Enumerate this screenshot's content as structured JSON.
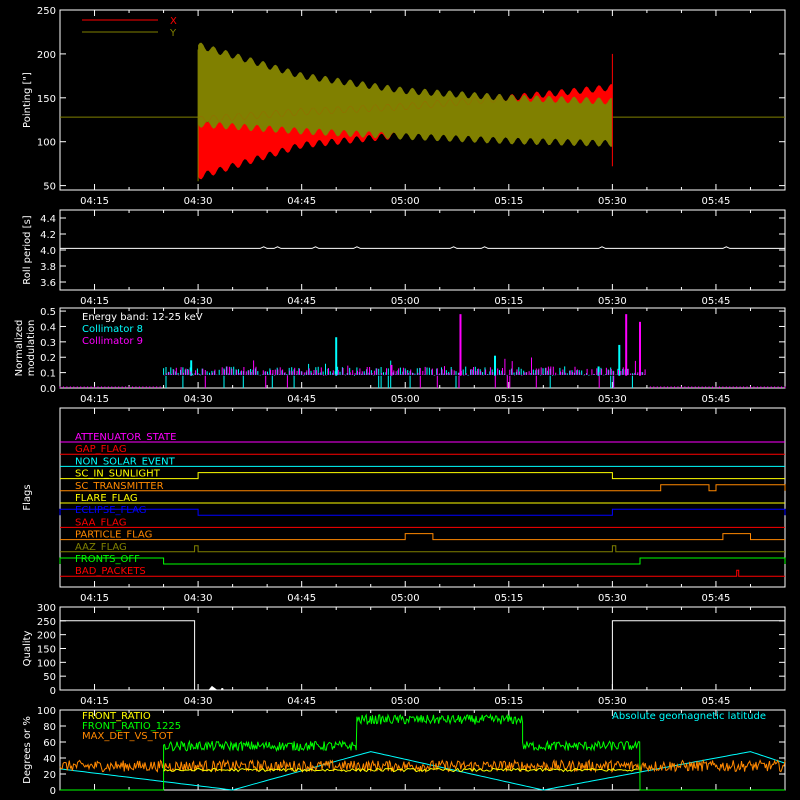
{
  "chart_data": [
    {
      "type": "line",
      "ylabel": "Pointing [\"]",
      "ylim": [
        45,
        250
      ],
      "yticks": [
        50,
        100,
        150,
        200,
        250
      ],
      "xlim": [
        "04:10",
        "05:55"
      ],
      "xticks": [
        "04:15",
        "04:30",
        "04:45",
        "05:00",
        "05:15",
        "05:30",
        "05:45"
      ],
      "legend_position": "top-left",
      "series": [
        {
          "name": "X",
          "color": "#ff0000",
          "baseline": 128,
          "active_range": [
            "04:30",
            "05:30"
          ],
          "envelope": {
            "time": [
              "04:30",
              "04:45",
              "05:00",
              "05:15",
              "05:30"
            ],
            "low": [
              60,
              96,
              108,
              115,
              120
            ],
            "high": [
              125,
              134,
              140,
              150,
              162
            ]
          }
        },
        {
          "name": "Y",
          "color": "#808000",
          "baseline": 128,
          "active_range": [
            "04:30",
            "05:30"
          ],
          "envelope": {
            "time": [
              "04:30",
              "04:45",
              "05:00",
              "05:15",
              "05:30"
            ],
            "low": [
              120,
              112,
              106,
              101,
              98
            ],
            "high": [
              210,
              175,
              158,
              150,
              146
            ]
          }
        }
      ]
    },
    {
      "type": "line",
      "ylabel": "Roll period [s]",
      "ylim": [
        3.5,
        4.5
      ],
      "yticks": [
        3.6,
        3.8,
        4.0,
        4.2,
        4.4
      ],
      "xticks": [
        "04:15",
        "04:30",
        "04:45",
        "05:00",
        "05:15",
        "05:30",
        "05:45"
      ],
      "series": [
        {
          "color": "#ffffff",
          "value": 4.02
        }
      ]
    },
    {
      "type": "bar",
      "ylabel": "Normalized modulation",
      "ylim": [
        0,
        0.52
      ],
      "yticks": [
        0.0,
        0.1,
        0.2,
        0.3,
        0.4,
        0.5
      ],
      "xticks": [
        "04:15",
        "04:30",
        "04:45",
        "05:00",
        "05:15",
        "05:30",
        "05:45"
      ],
      "annotation": "Energy band: 12-25 keV",
      "active_range": [
        "04:25",
        "05:35"
      ],
      "series": [
        {
          "name": "Collimator 8",
          "color": "#00ffff",
          "spikes": [
            {
              "t": "04:50",
              "v": 0.33
            },
            {
              "t": "05:13",
              "v": 0.21
            },
            {
              "t": "05:31",
              "v": 0.28
            },
            {
              "t": "04:29",
              "v": 0.18
            },
            {
              "t": "05:28",
              "v": 0.14
            }
          ]
        },
        {
          "name": "Collimator 9",
          "color": "#ff00ff",
          "spikes": [
            {
              "t": "05:08",
              "v": 0.48
            },
            {
              "t": "05:32",
              "v": 0.48
            },
            {
              "t": "05:34",
              "v": 0.43
            },
            {
              "t": "04:58",
              "v": 0.15
            }
          ]
        }
      ]
    },
    {
      "type": "line",
      "ylabel": "Flags",
      "xticks": [
        "04:15",
        "04:30",
        "04:45",
        "05:00",
        "05:15",
        "05:30",
        "05:45"
      ],
      "flags": [
        {
          "name": "ATTENUATOR_STATE",
          "color": "#ff00ff",
          "segments": []
        },
        {
          "name": "GAP_FLAG",
          "color": "#ff0000",
          "segments": []
        },
        {
          "name": "NON_SOLAR_EVENT",
          "color": "#00ffff",
          "segments": []
        },
        {
          "name": "SC_IN_SUNLIGHT",
          "color": "#ffff00",
          "segments": [
            [
              "04:30",
              "05:30"
            ]
          ]
        },
        {
          "name": "SC_TRANSMITTER",
          "color": "#ff8800",
          "segments": [
            [
              "05:37",
              "05:44"
            ],
            [
              "05:45",
              "05:55"
            ]
          ]
        },
        {
          "name": "FLARE_FLAG",
          "color": "#ffff00",
          "segments": []
        },
        {
          "name": "ECLIPSE_FLAG",
          "color": "#0000ff",
          "segments": [
            [
              "04:10",
              "04:30"
            ],
            [
              "05:30",
              "05:55"
            ]
          ]
        },
        {
          "name": "SAA_FLAG",
          "color": "#ff0000",
          "segments": []
        },
        {
          "name": "PARTICLE_FLAG",
          "color": "#ff8800",
          "segments": [
            [
              "05:00",
              "05:04"
            ],
            [
              "05:46",
              "05:50"
            ]
          ]
        },
        {
          "name": "AAZ_FLAG",
          "color": "#808000",
          "segments": [
            [
              "04:29.5",
              "04:30"
            ],
            [
              "05:30",
              "05:30.5"
            ]
          ]
        },
        {
          "name": "FRONTS_OFF",
          "color": "#00ff00",
          "segments": [
            [
              "04:10",
              "04:25"
            ],
            [
              "05:34",
              "05:55"
            ]
          ]
        },
        {
          "name": "BAD_PACKETS",
          "color": "#ff0000",
          "segments": [
            [
              "05:48",
              "05:48.3"
            ]
          ]
        }
      ]
    },
    {
      "type": "line",
      "ylabel": "Quality",
      "ylim": [
        0,
        300
      ],
      "yticks": [
        0,
        50,
        100,
        150,
        200,
        250,
        300
      ],
      "xticks": [
        "04:15",
        "04:30",
        "04:45",
        "05:00",
        "05:15",
        "05:30",
        "05:45"
      ],
      "series": [
        {
          "color": "#ffffff",
          "segments": [
            {
              "range": [
                "04:10",
                "04:29.5"
              ],
              "value": 250
            },
            {
              "range": [
                "04:29.5",
                "05:30"
              ],
              "value": 0
            },
            {
              "range": [
                "05:30",
                "05:55"
              ],
              "value": 250
            }
          ]
        }
      ]
    },
    {
      "type": "line",
      "ylabel": "Degrees or %",
      "ylim": [
        0,
        100
      ],
      "yticks": [
        0,
        20,
        40,
        60,
        80,
        100
      ],
      "annotation": "Absolute geomagnetic latitude",
      "series": [
        {
          "name": "FRONT_RATIO",
          "color": "#ffff00",
          "level": 25
        },
        {
          "name": "FRONT_RATIO_1225",
          "color": "#00ff00",
          "levels": [
            {
              "range": [
                "04:25",
                "04:53"
              ],
              "v": 55
            },
            {
              "range": [
                "04:53",
                "05:17"
              ],
              "v": 88
            },
            {
              "range": [
                "05:17",
                "05:34"
              ],
              "v": 55
            }
          ]
        },
        {
          "name": "MAX_DET_VS_TOT",
          "color": "#ff8800",
          "level": 30
        },
        {
          "name": "Absolute geomagnetic latitude",
          "color": "#00ffff",
          "shape": "triangle",
          "peaks": [
            "04:55",
            "05:50"
          ],
          "troughs": [
            "04:35",
            "05:20"
          ],
          "max": 48
        }
      ]
    }
  ]
}
